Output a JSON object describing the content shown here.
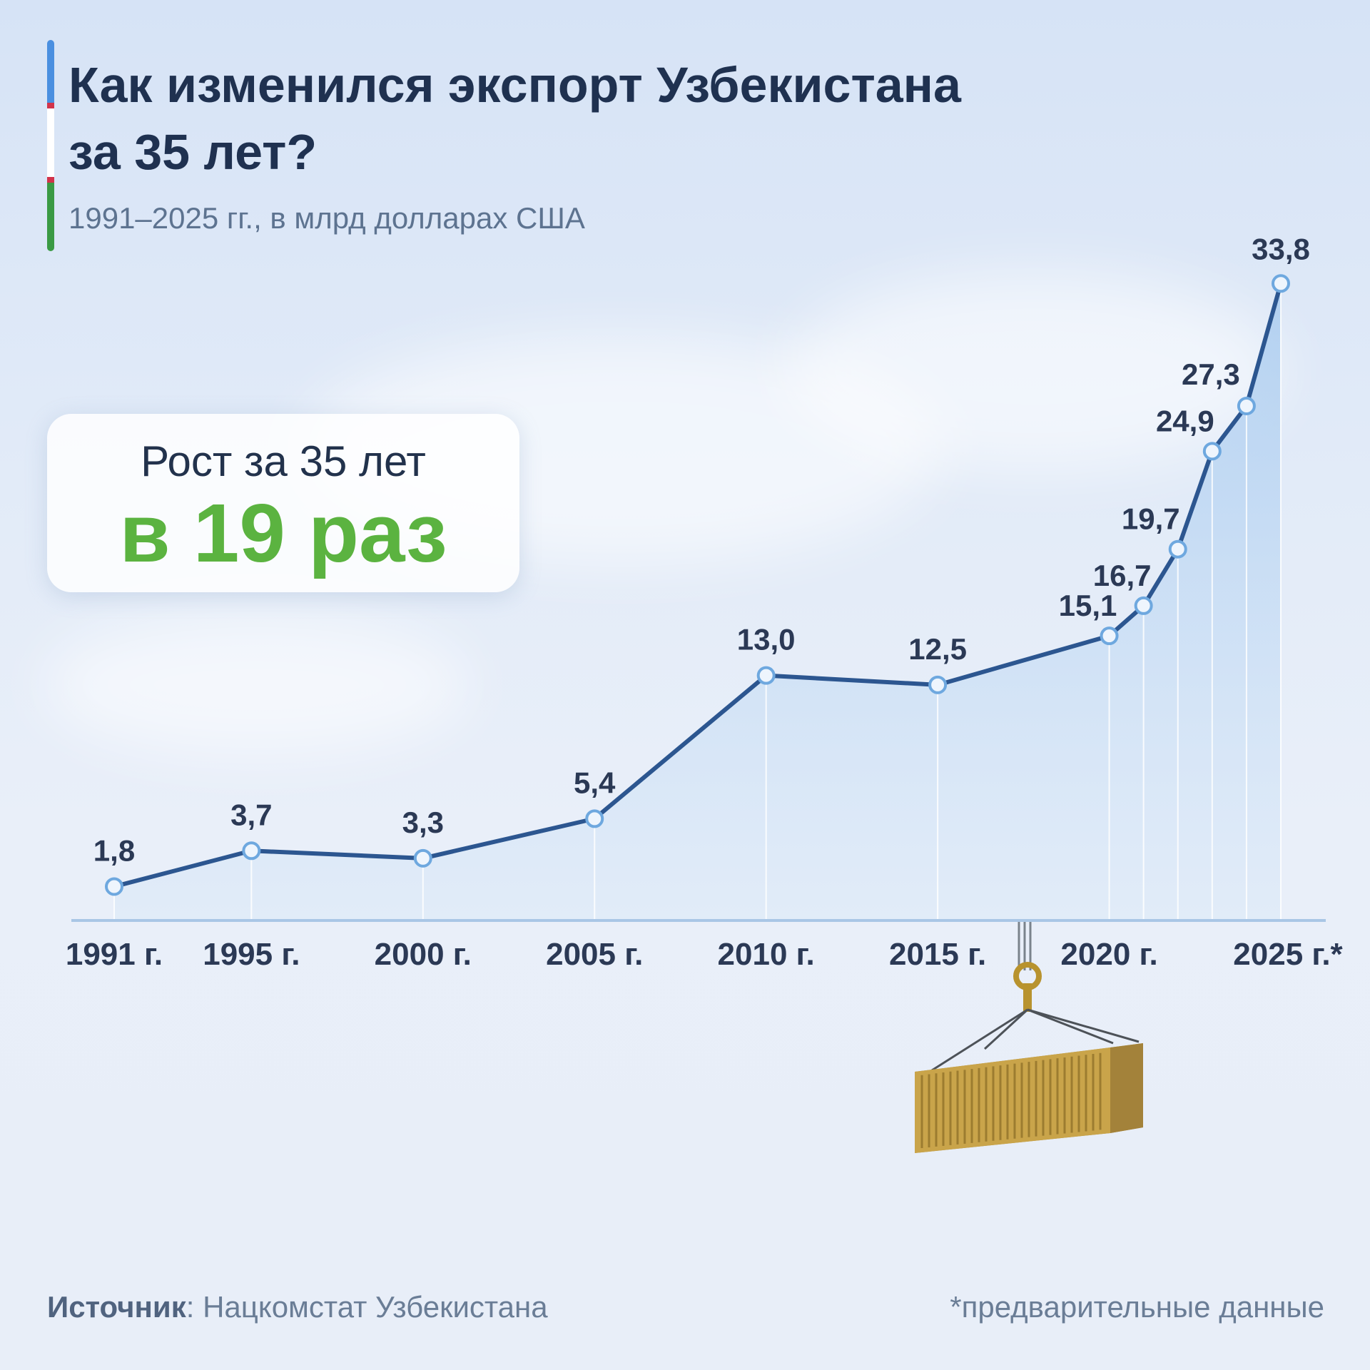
{
  "header": {
    "title_line1": "Как изменился экспорт Узбекистана",
    "title_line2": "за 35 лет?",
    "subtitle": "1991–2025 гг., в млрд долларах США",
    "flag_colors": [
      "#4a8fe0",
      "#ffffff",
      "#3a9a44"
    ],
    "flag_stripe_color": "#d2334a"
  },
  "growth_card": {
    "label": "Рост за 35 лет",
    "value": "в 19 раз",
    "value_color": "#5bb340"
  },
  "chart_data": {
    "type": "area",
    "x": [
      1991,
      1995,
      2000,
      2005,
      2010,
      2015,
      2020,
      2021,
      2022,
      2023,
      2024,
      2025
    ],
    "values": [
      1.8,
      3.7,
      3.3,
      5.4,
      13.0,
      12.5,
      15.1,
      16.7,
      19.7,
      24.9,
      27.3,
      33.8
    ],
    "value_labels": [
      "1,8",
      "3,7",
      "3,3",
      "5,4",
      "13,0",
      "12,5",
      "15,1",
      "16,7",
      "19,7",
      "24,9",
      "27,3",
      "33,8"
    ],
    "tick_years": [
      1991,
      1995,
      2000,
      2005,
      2010,
      2015,
      2020,
      2025
    ],
    "tick_labels": [
      "1991 г.",
      "1995 г.",
      "2000 г.",
      "2005 г.",
      "2010 г.",
      "2015 г.",
      "2020 г.",
      "2025 г.*"
    ],
    "xlim": [
      1991,
      2025
    ],
    "ylim": [
      0,
      34
    ],
    "grid": false,
    "line_color": "#2c5690",
    "fill_color": "#b9d6f2",
    "marker_color": "#6ea8df"
  },
  "footer": {
    "source_label": "Источник",
    "source_value": ": Нацкомстат Узбекистана",
    "note": "*предварительные данные"
  }
}
